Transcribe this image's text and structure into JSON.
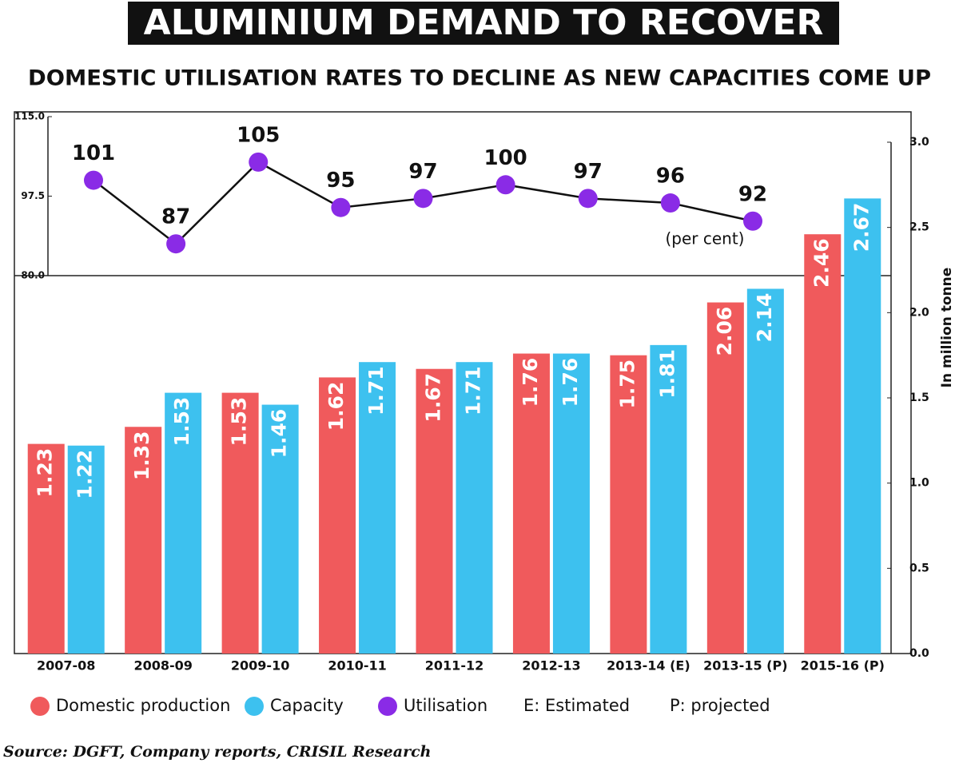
{
  "title": "ALUMINIUM DEMAND TO RECOVER",
  "subtitle": "DOMESTIC UTILISATION RATES TO DECLINE AS NEW CAPACITIES COME UP",
  "notes": [
    "E: Estimated",
    "P: projected"
  ],
  "source": "Source: DGFT, Company reports, CRISIL Research",
  "chart_data": [
    {
      "type": "line",
      "series": [
        {
          "name": "Utilisation",
          "color": "#8a2be6",
          "values": [
            101,
            87,
            105,
            95,
            97,
            100,
            97,
            96,
            92
          ]
        }
      ],
      "annotation": "(per cent)",
      "ylim": [
        80,
        115
      ],
      "yticks": [
        {
          "value": 80,
          "label": "80.0"
        },
        97.5,
        {
          "value": 115,
          "label": "115.0"
        }
      ]
    },
    {
      "type": "bar",
      "categories": [
        "2007-08",
        "2008-09",
        "2009-10",
        "2010-11",
        "2011-12",
        "2012-13",
        "2013-14 (E)",
        "2013-15 (P)",
        "2015-16 (P)"
      ],
      "series": [
        {
          "name": "Domestic production",
          "color": "#f05a5c",
          "values": [
            1.23,
            1.33,
            1.53,
            1.62,
            1.67,
            1.76,
            1.75,
            2.06,
            2.46
          ]
        },
        {
          "name": "Capacity",
          "color": "#3dc1ef",
          "values": [
            1.22,
            1.53,
            1.46,
            1.71,
            1.71,
            1.76,
            1.81,
            2.14,
            2.67
          ]
        }
      ],
      "ylabel": "In million tonne",
      "yaxis_side": "right",
      "ylim": [
        0,
        3
      ],
      "yticks": [
        {
          "value": 0,
          "label": "0.0"
        },
        0.5,
        {
          "value": 1,
          "label": "1.0"
        },
        1.5,
        {
          "value": 2,
          "label": "2.0"
        },
        2.5,
        {
          "value": 3,
          "label": "3.0"
        }
      ]
    }
  ]
}
